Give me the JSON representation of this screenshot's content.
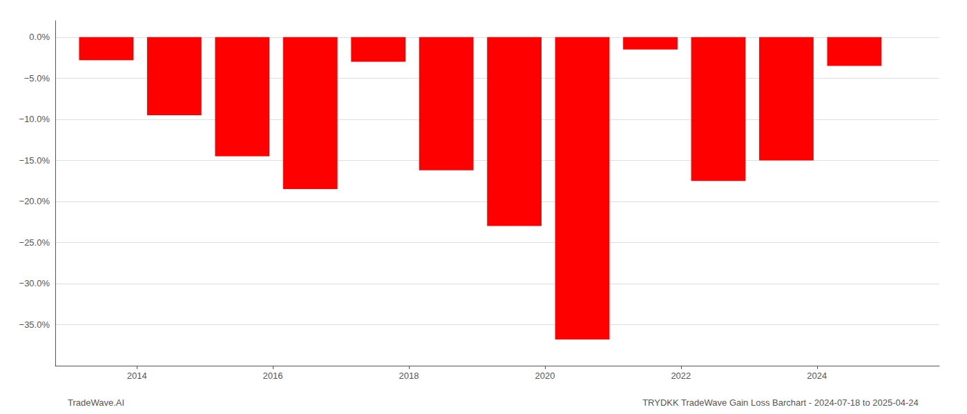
{
  "chart_data": {
    "type": "bar",
    "x": [
      2013.55,
      2014.55,
      2015.55,
      2016.55,
      2017.55,
      2018.55,
      2019.55,
      2020.55,
      2021.55,
      2022.55,
      2023.55,
      2024.55
    ],
    "values": [
      -2.8,
      -9.5,
      -14.5,
      -18.5,
      -3.0,
      -16.2,
      -23.0,
      -36.8,
      -1.5,
      -17.5,
      -15.0,
      -3.5
    ],
    "color": "#ff0000",
    "xlim": [
      2012.8,
      2025.8
    ],
    "xticks": [
      2014,
      2016,
      2018,
      2020,
      2022,
      2024
    ],
    "ylim": [
      -40.0,
      2.0
    ],
    "yticks": [
      {
        "value": 0.0,
        "label": "0.0%"
      },
      {
        "value": -5.0,
        "label": "−5.0%"
      },
      {
        "value": -10.0,
        "label": "−10.0%"
      },
      {
        "value": -15.0,
        "label": "−15.0%"
      },
      {
        "value": -20.0,
        "label": "−20.0%"
      },
      {
        "value": -25.0,
        "label": "−25.0%"
      },
      {
        "value": -30.0,
        "label": "−30.0%"
      },
      {
        "value": -35.0,
        "label": "−35.0%"
      }
    ],
    "grid": true,
    "annotations": [
      "TradeWave.AI",
      "TRYDKK TradeWave Gain Loss Barchart - 2024-07-18 to 2025-04-24"
    ]
  }
}
